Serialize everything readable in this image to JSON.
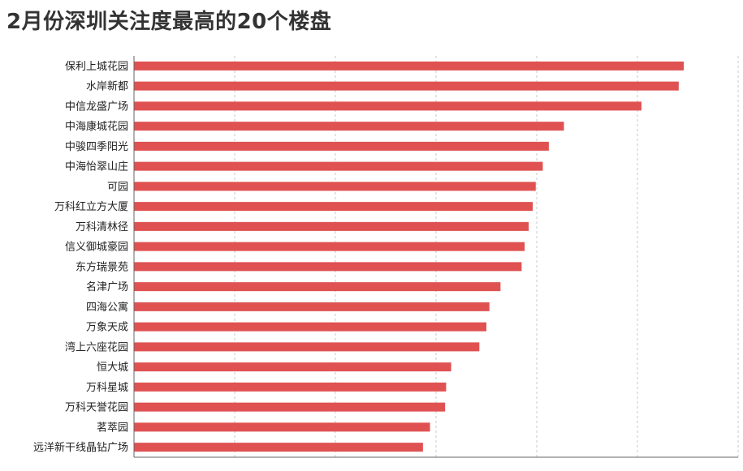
{
  "title": "2月份深圳关注度最高的20个楼盘",
  "colors": {
    "bar": "#e05252",
    "grid": "#c8c8c8",
    "axis": "#666666",
    "title": "#333333"
  },
  "chart_data": {
    "type": "bar",
    "orientation": "horizontal",
    "title": "2月份深圳关注度最高的20个楼盘",
    "xlabel": "",
    "ylabel": "",
    "xlim": [
      0,
      6
    ],
    "grid": true,
    "legend": "none",
    "categories": [
      "保利上城花园",
      "水岸新都",
      "中信龙盛广场",
      "中海康城花园",
      "中骏四季阳光",
      "中海怡翠山庄",
      "可园",
      "万科红立方大厦",
      "万科清林径",
      "信义御城豪园",
      "东方瑞景苑",
      "名津广场",
      "四海公寓",
      "万象天成",
      "湾上六座花园",
      "恒大城",
      "万科星城",
      "万科天誉花园",
      "茗萃园",
      "远洋新干线晶钻广场"
    ],
    "values": [
      5.46,
      5.41,
      5.04,
      4.27,
      4.12,
      4.06,
      3.99,
      3.96,
      3.92,
      3.88,
      3.85,
      3.64,
      3.53,
      3.5,
      3.43,
      3.15,
      3.1,
      3.09,
      2.94,
      2.87
    ]
  }
}
